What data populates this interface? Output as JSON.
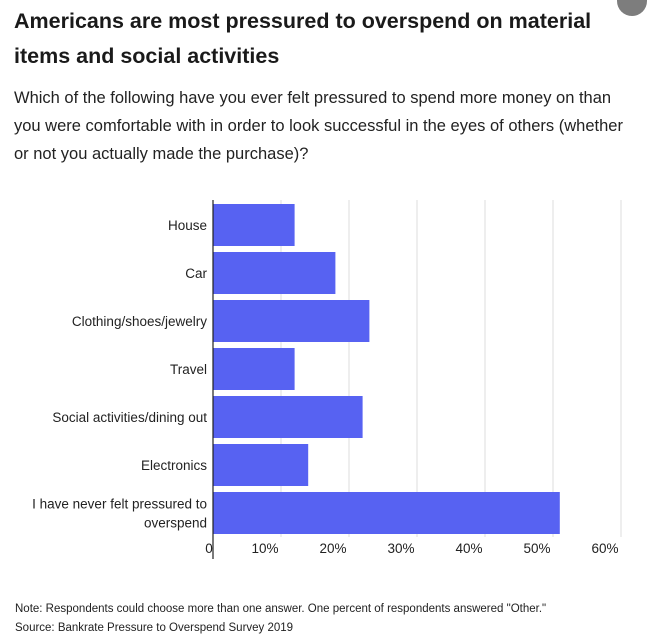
{
  "title": "Americans are most pressured to overspend on material items and social activities",
  "subtitle": "Which of the following have you ever felt pressured to spend more money on than you were comfortable with in order to look successful in the eyes of others (whether or not you actually made the purchase)?",
  "note": "Note: Respondents could choose more than one answer. One percent of respondents answered \"Other.\"",
  "source": "Source: Bankrate Pressure to Overspend Survey 2019",
  "colors": {
    "bar": "#5762f2",
    "grid": "#dcdcdc",
    "axis": "#222222",
    "text": "#222222"
  },
  "chart_data": {
    "type": "bar",
    "orientation": "horizontal",
    "categories": [
      "House",
      "Car",
      "Clothing/shoes/jewelry",
      "Travel",
      "Social activities/dining out",
      "Electronics",
      "I have never felt pressured to overspend"
    ],
    "values": [
      12,
      18,
      23,
      12,
      22,
      14,
      51
    ],
    "xlim": [
      0,
      60
    ],
    "xticks": [
      0,
      10,
      20,
      30,
      40,
      50,
      60
    ],
    "xtick_labels": [
      "0",
      "10%",
      "20%",
      "30%",
      "40%",
      "50%",
      "60%"
    ],
    "grid": true,
    "legend": "none"
  }
}
